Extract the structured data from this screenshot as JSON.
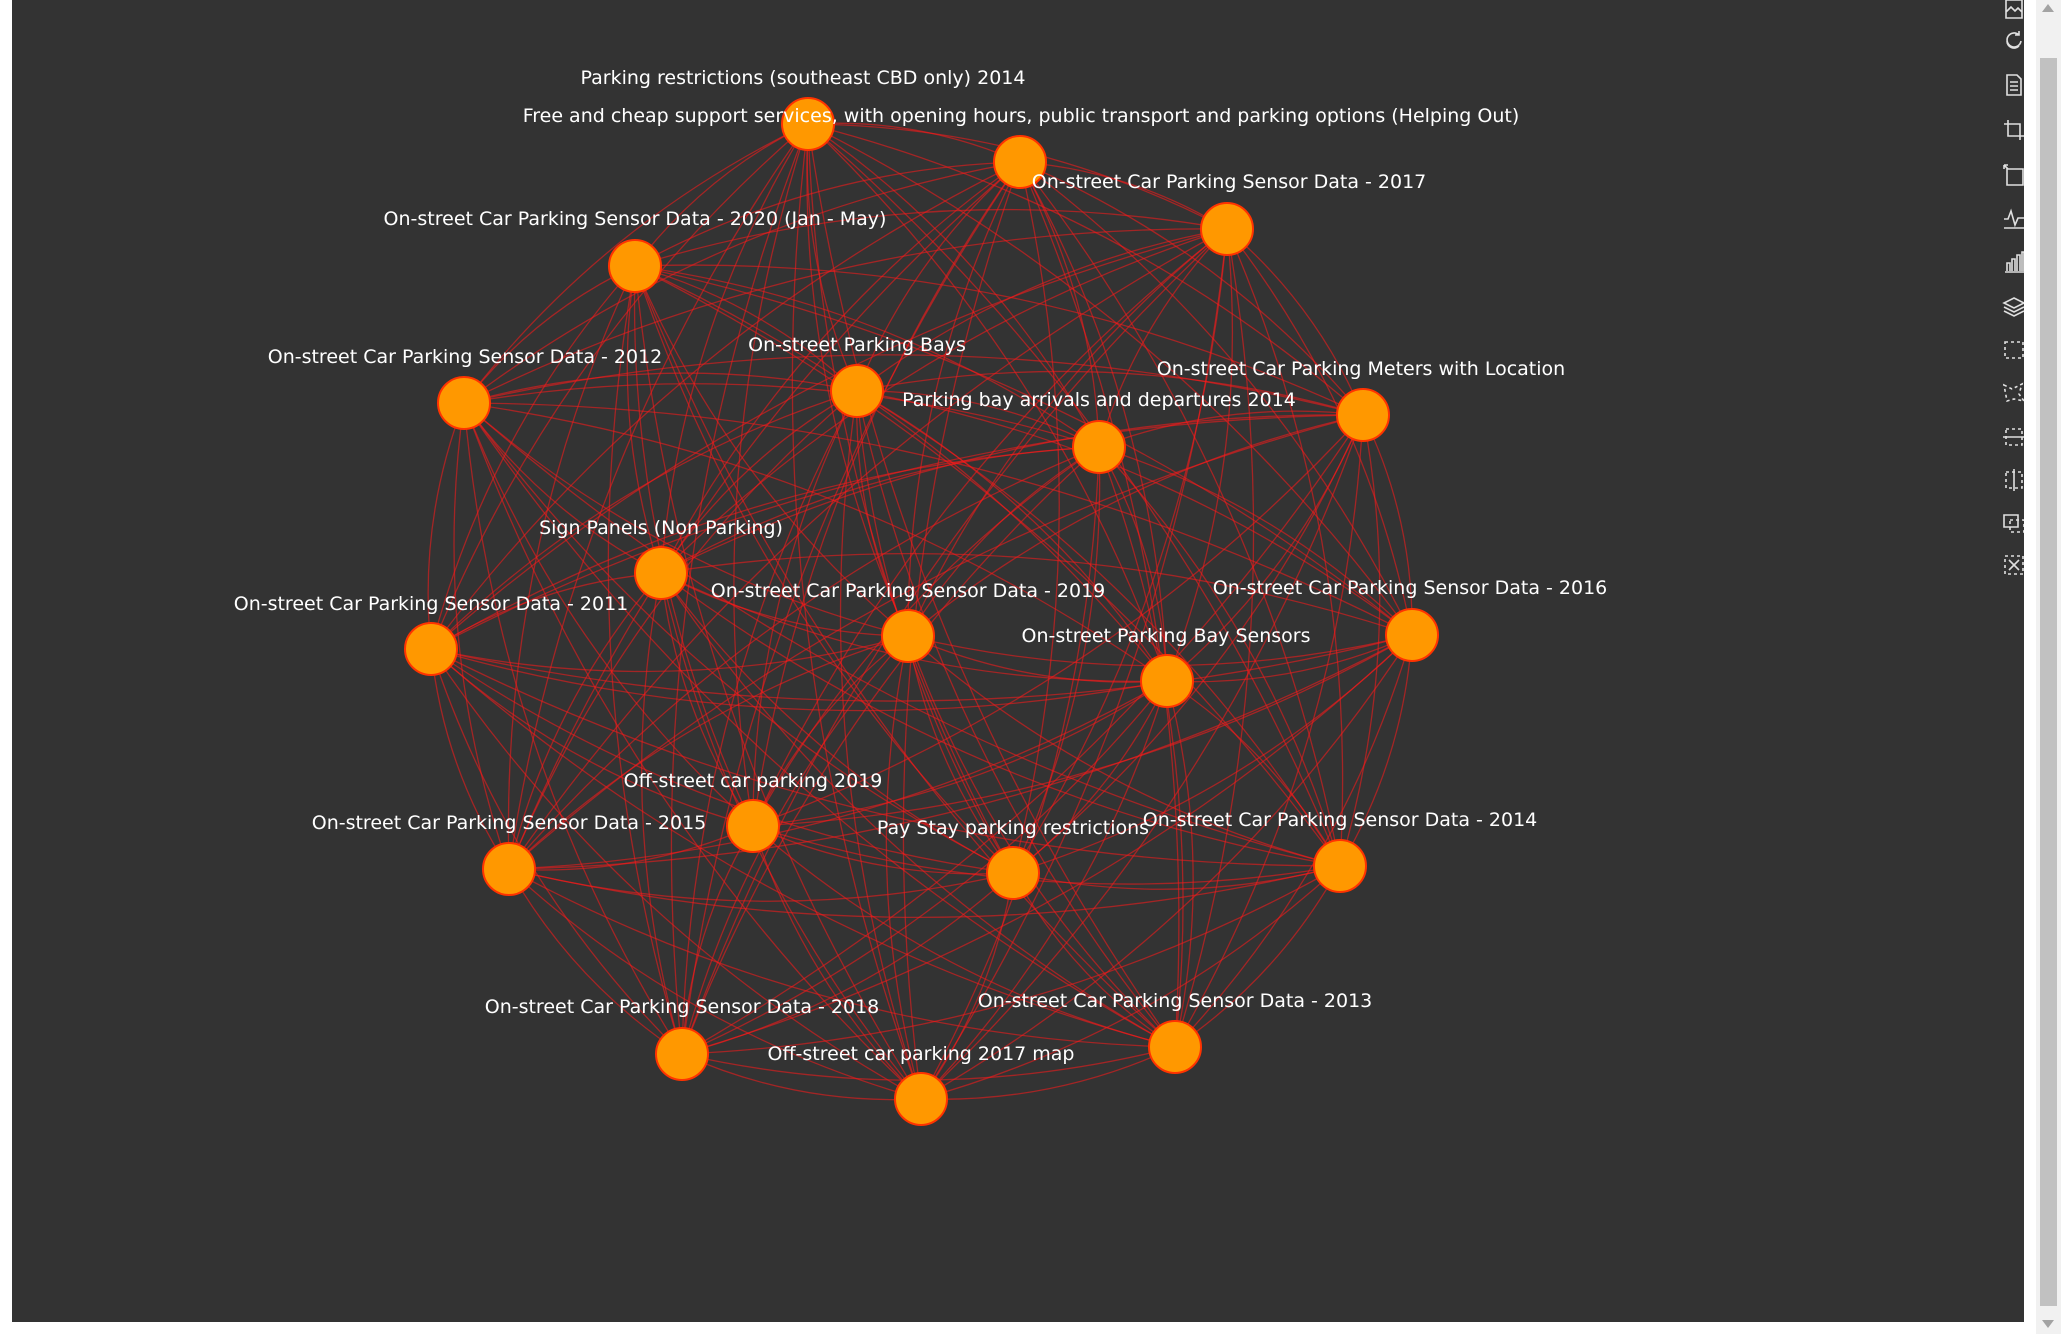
{
  "chart": {
    "title": "",
    "background_color": "#333333",
    "node_color": "#ff9800",
    "node_border_color": "#ff3300",
    "edge_color": "#ff1a1a",
    "label_color": "#ffffff"
  },
  "chart_data": {
    "type": "graph",
    "layout": "force",
    "nodes": [
      {
        "name": "Parking restrictions (southeast CBD only) 2014"
      },
      {
        "name": "Free and cheap support services, with opening hours, public transport and parking options (Helping Out)"
      },
      {
        "name": "On-street Car Parking Sensor Data - 2017"
      },
      {
        "name": "On-street Car Parking Sensor Data - 2020 (Jan - May)"
      },
      {
        "name": "On-street Car Parking Sensor Data - 2012"
      },
      {
        "name": "On-street Parking Bays"
      },
      {
        "name": "On-street Car Parking Meters with Location"
      },
      {
        "name": "Parking bay arrivals and departures 2014"
      },
      {
        "name": "Sign Panels (Non Parking)"
      },
      {
        "name": "On-street Car Parking Sensor Data - 2011"
      },
      {
        "name": "On-street Car Parking Sensor Data - 2019"
      },
      {
        "name": "On-street Car Parking Sensor Data - 2016"
      },
      {
        "name": "On-street Parking Bay Sensors"
      },
      {
        "name": "Off-street car parking 2019"
      },
      {
        "name": "On-street Car Parking Sensor Data - 2015"
      },
      {
        "name": "Pay Stay parking restrictions"
      },
      {
        "name": "On-street Car Parking Sensor Data - 2014"
      },
      {
        "name": "On-street Car Parking Sensor Data - 2018"
      },
      {
        "name": "On-street Car Parking Sensor Data - 2013"
      },
      {
        "name": "Off-street car parking 2017 map"
      }
    ],
    "edges": "fully-connected"
  },
  "toolbox": [
    {
      "icon": "save-image-icon"
    },
    {
      "icon": "restore-icon"
    },
    {
      "icon": "data-view-icon"
    },
    {
      "icon": "zoom-icon"
    },
    {
      "icon": "zoom-reset-icon"
    },
    {
      "icon": "line-chart-icon"
    },
    {
      "icon": "bar-chart-icon"
    },
    {
      "icon": "stack-icon"
    },
    {
      "icon": "rect-select-icon"
    },
    {
      "icon": "polygon-select-icon"
    },
    {
      "icon": "line-x-select-icon"
    },
    {
      "icon": "line-y-select-icon"
    },
    {
      "icon": "keep-selection-icon"
    },
    {
      "icon": "clear-selection-icon"
    }
  ]
}
